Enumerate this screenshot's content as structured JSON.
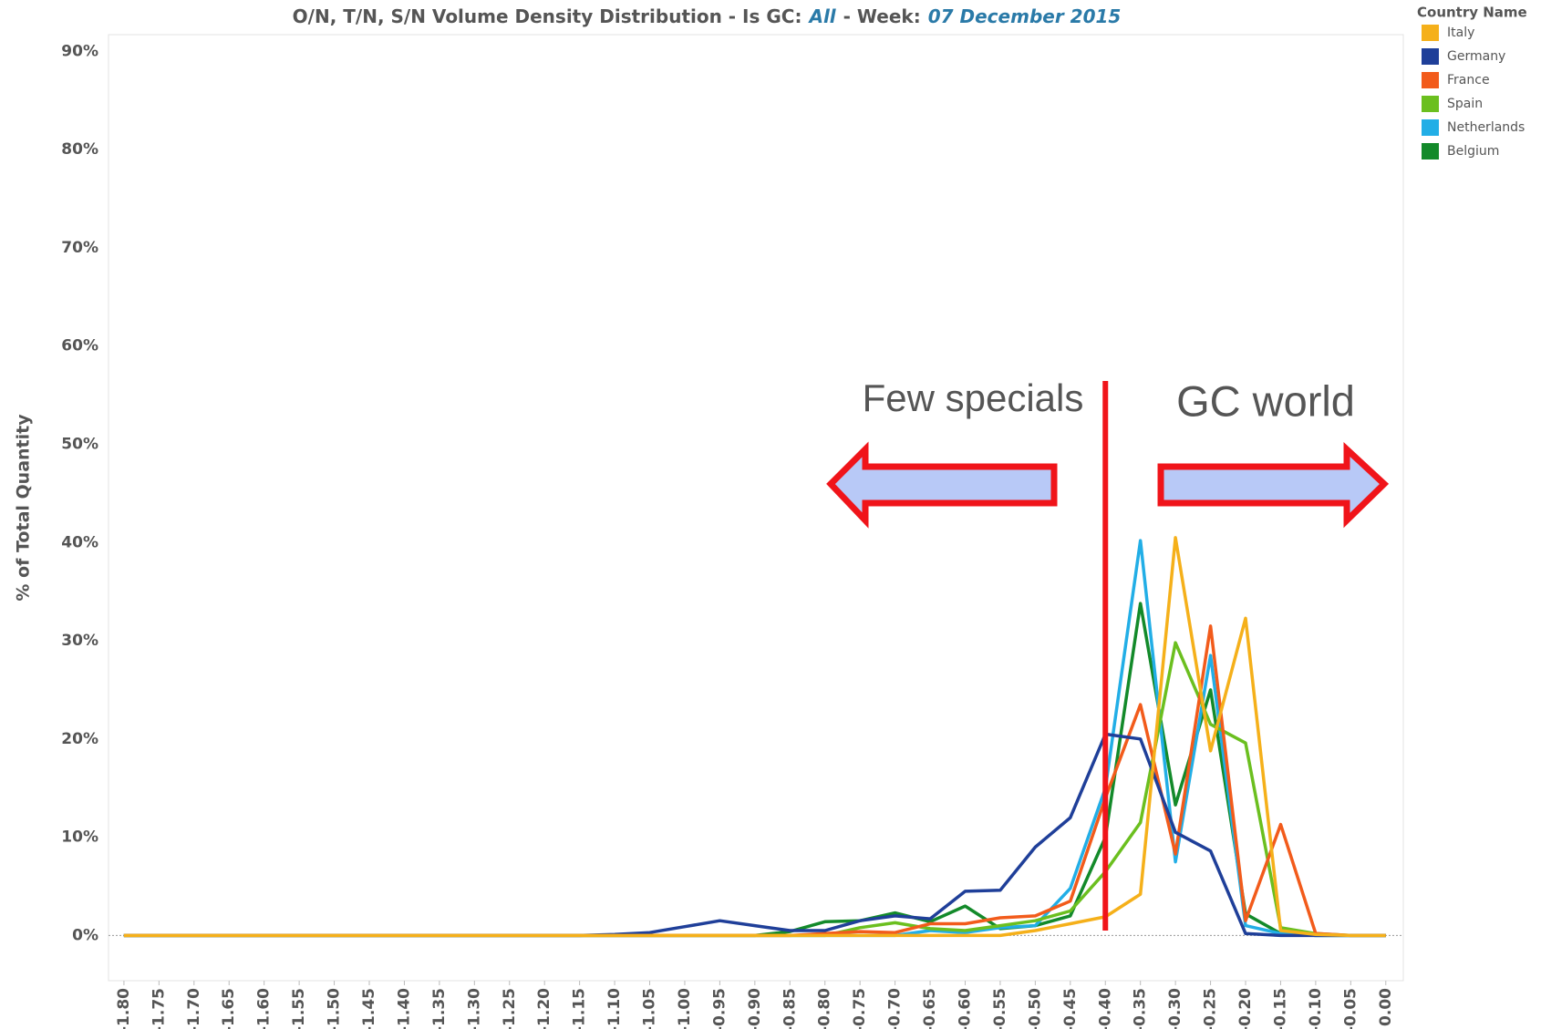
{
  "chart_data": {
    "type": "line",
    "title": "O/N, T/N, S/N Volume Density Distribution - Is GC:",
    "gc_filter": "All",
    "week_label": "- Week:",
    "week": "07 December 2015",
    "y_label": "% of Total Quantity",
    "legend_title": "Country Name",
    "annotations": [
      "Few specials",
      "GC world"
    ],
    "reference_line": -0.4,
    "x": [
      -1.8,
      -1.75,
      -1.7,
      -1.65,
      -1.6,
      -1.55,
      -1.5,
      -1.45,
      -1.4,
      -1.35,
      -1.3,
      -1.25,
      -1.2,
      -1.15,
      -1.1,
      -1.05,
      -1.0,
      -0.95,
      -0.9,
      -0.85,
      -0.8,
      -0.75,
      -0.7,
      -0.65,
      -0.6,
      -0.55,
      -0.5,
      -0.45,
      -0.4,
      -0.35,
      -0.3,
      -0.25,
      -0.2,
      -0.15,
      -0.1,
      -0.05,
      0
    ],
    "xlim": [
      -1.822,
      0.025
    ],
    "xticks": [
      {
        "value": -1.8,
        "label": "-1.80"
      },
      {
        "value": -1.75,
        "label": "-1.75"
      },
      {
        "value": -1.7,
        "label": "-1.70"
      },
      {
        "value": -1.65,
        "label": "-1.65"
      },
      {
        "value": -1.6,
        "label": "-1.60"
      },
      {
        "value": -1.55,
        "label": "-1.55"
      },
      {
        "value": -1.5,
        "label": "-1.50"
      },
      {
        "value": -1.45,
        "label": "-1.45"
      },
      {
        "value": -1.4,
        "label": "-1.40"
      },
      {
        "value": -1.35,
        "label": "-1.35"
      },
      {
        "value": -1.3,
        "label": "-1.30"
      },
      {
        "value": -1.25,
        "label": "-1.25"
      },
      {
        "value": -1.2,
        "label": "-1.20"
      },
      {
        "value": -1.15,
        "label": "-1.15"
      },
      {
        "value": -1.1,
        "label": "-1.10"
      },
      {
        "value": -1.05,
        "label": "-1.05"
      },
      {
        "value": -1.0,
        "label": "-1.00"
      },
      {
        "value": -0.95,
        "label": "-0.95"
      },
      {
        "value": -0.9,
        "label": "-0.90"
      },
      {
        "value": -0.85,
        "label": "-0.85"
      },
      {
        "value": -0.8,
        "label": "-0.80"
      },
      {
        "value": -0.75,
        "label": "-0.75"
      },
      {
        "value": -0.7,
        "label": "-0.70"
      },
      {
        "value": -0.65,
        "label": "-0.65"
      },
      {
        "value": -0.6,
        "label": "-0.60"
      },
      {
        "value": -0.55,
        "label": "-0.55"
      },
      {
        "value": -0.5,
        "label": "-0.50"
      },
      {
        "value": -0.45,
        "label": "-0.45"
      },
      {
        "value": -0.4,
        "label": "-0.40"
      },
      {
        "value": -0.35,
        "label": "-0.35"
      },
      {
        "value": -0.3,
        "label": "-0.30"
      },
      {
        "value": -0.25,
        "label": "-0.25"
      },
      {
        "value": -0.2,
        "label": "-0.20"
      },
      {
        "value": -0.15,
        "label": "-0.15"
      },
      {
        "value": -0.1,
        "label": "-0.10"
      },
      {
        "value": -0.05,
        "label": "-0.05"
      },
      {
        "value": 0,
        "label": "0.00"
      }
    ],
    "ylim": [
      -4.6,
      91.7
    ],
    "yticks": [
      {
        "value": 0,
        "label": "0%"
      },
      {
        "value": 10,
        "label": "10%"
      },
      {
        "value": 20,
        "label": "20%"
      },
      {
        "value": 30,
        "label": "30%"
      },
      {
        "value": 40,
        "label": "40%"
      },
      {
        "value": 50,
        "label": "50%"
      },
      {
        "value": 60,
        "label": "60%"
      },
      {
        "value": 70,
        "label": "70%"
      },
      {
        "value": 80,
        "label": "80%"
      },
      {
        "value": 90,
        "label": "90%"
      }
    ],
    "zero_line": true,
    "series": [
      {
        "name": "Italy",
        "color": "#f5b01a",
        "values": [
          0,
          0,
          0,
          0,
          0,
          0,
          0,
          0,
          0,
          0,
          0,
          0,
          0,
          0,
          0,
          0,
          0,
          0,
          0,
          0,
          0,
          0,
          0,
          0,
          0,
          0,
          0.5,
          1.2,
          1.9,
          4.2,
          40.5,
          18.8,
          32.3,
          0.5,
          0.1,
          0,
          0
        ]
      },
      {
        "name": "Germany",
        "color": "#1f3f99",
        "values": [
          0,
          0,
          0,
          0,
          0,
          0,
          0,
          0,
          0,
          0,
          0,
          0,
          0,
          0,
          0.1,
          0.3,
          0.9,
          1.5,
          1.0,
          0.5,
          0.5,
          1.5,
          2.0,
          1.7,
          4.5,
          4.6,
          9,
          12,
          20.5,
          20,
          10.5,
          8.6,
          0.2,
          0,
          0,
          0,
          0
        ]
      },
      {
        "name": "France",
        "color": "#f25b1b",
        "values": [
          0,
          0,
          0,
          0,
          0,
          0,
          0,
          0,
          0,
          0,
          0,
          0,
          0,
          0,
          0,
          0,
          0,
          0,
          0,
          0,
          0.2,
          0.4,
          0.3,
          1.2,
          1.2,
          1.8,
          2,
          3.5,
          14,
          23.5,
          8.3,
          31.5,
          1.5,
          11.3,
          0.2,
          0,
          0
        ]
      },
      {
        "name": "Spain",
        "color": "#6bbf1f",
        "values": [
          0,
          0,
          0,
          0,
          0,
          0,
          0,
          0,
          0,
          0,
          0,
          0,
          0,
          0,
          0,
          0,
          0,
          0,
          0,
          0,
          0,
          0.8,
          1.3,
          0.7,
          0.5,
          1,
          1.5,
          2.5,
          6.5,
          11.5,
          29.8,
          21.5,
          19.6,
          0.8,
          0.2,
          0,
          0
        ]
      },
      {
        "name": "Netherlands",
        "color": "#22aee6",
        "values": [
          0,
          0,
          0,
          0,
          0,
          0,
          0,
          0,
          0,
          0,
          0,
          0,
          0,
          0,
          0,
          0,
          0,
          0,
          0,
          0,
          0,
          0,
          0,
          0.5,
          0.3,
          0.8,
          1,
          4.8,
          15,
          40.2,
          7.5,
          28.5,
          1,
          0.2,
          0,
          0,
          0
        ]
      },
      {
        "name": "Belgium",
        "color": "#138a2a",
        "values": [
          0,
          0,
          0,
          0,
          0,
          0,
          0,
          0,
          0,
          0,
          0,
          0,
          0,
          0,
          0,
          0,
          0,
          0,
          0,
          0.4,
          1.4,
          1.5,
          2.3,
          1.4,
          3,
          0.7,
          1,
          2,
          10,
          33.8,
          13.3,
          25,
          2.2,
          0.2,
          0,
          0,
          0
        ]
      }
    ]
  }
}
